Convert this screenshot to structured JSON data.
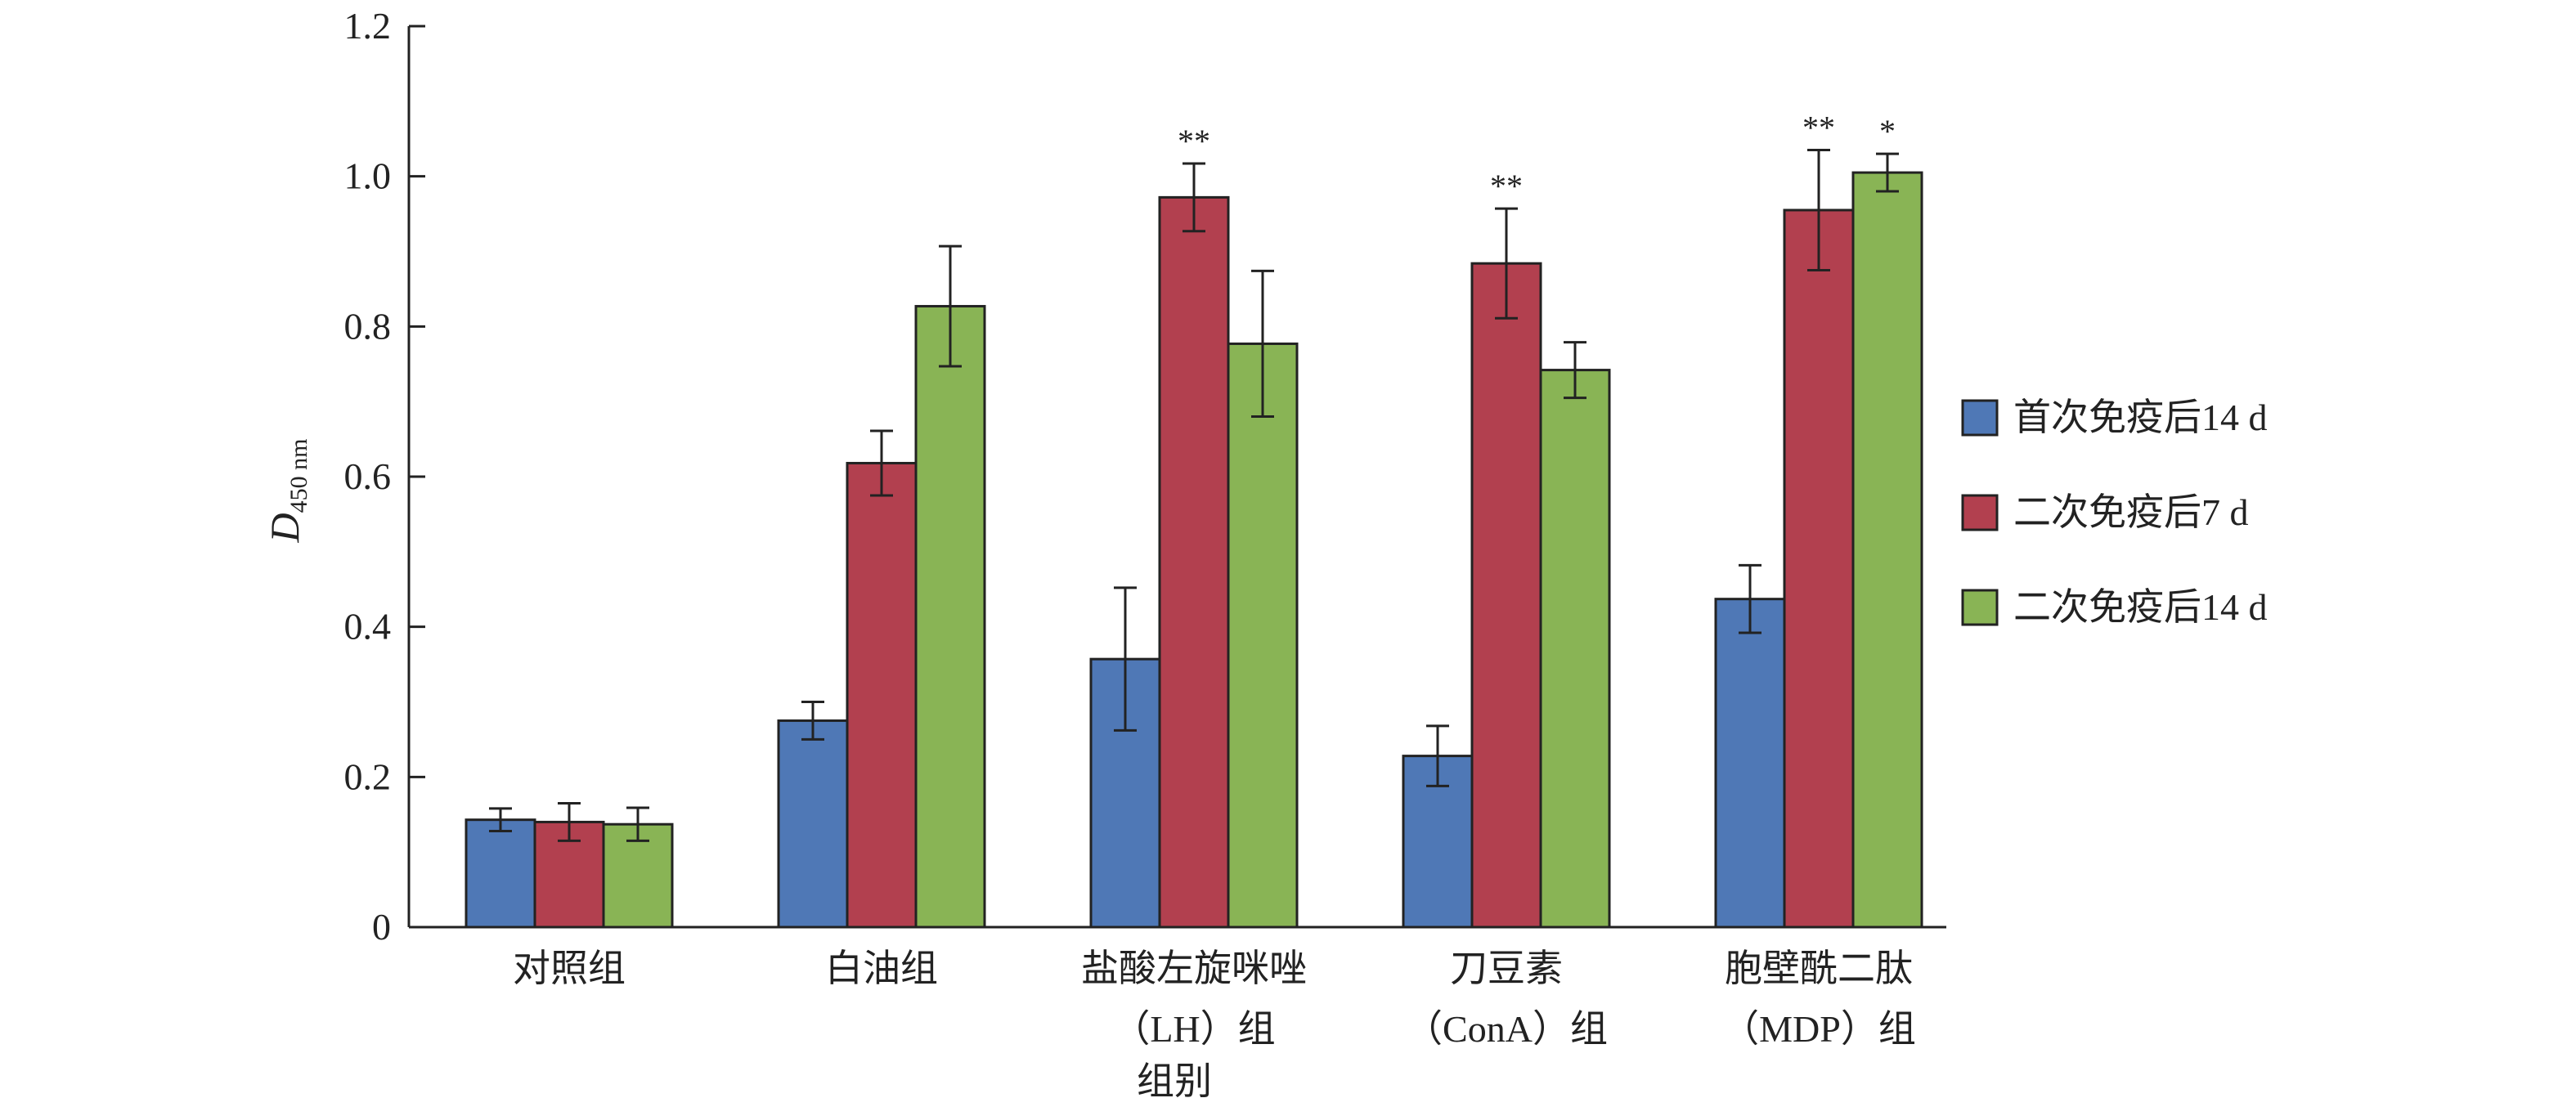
{
  "chart_data": {
    "type": "bar",
    "title": "",
    "xlabel": "组别",
    "ylabel": {
      "main": "D",
      "sub": "450 nm"
    },
    "ylim": [
      0,
      1.2
    ],
    "yticks": [
      0,
      0.2,
      0.4,
      0.6,
      0.8,
      1.0,
      1.2
    ],
    "ytick_labels": [
      "0",
      "0.2",
      "0.4",
      "0.6",
      "0.8",
      "1.0",
      "1.2"
    ],
    "categories": [
      [
        "对照组"
      ],
      [
        "白油组"
      ],
      [
        "盐酸左旋咪唑",
        "（LH）组"
      ],
      [
        "刀豆素",
        "（ConA）组"
      ],
      [
        "胞壁酰二肽",
        "（MDP）组"
      ]
    ],
    "legend_position": "right",
    "series": [
      {
        "name": "首次免疫后14 d",
        "color": "#4f78b6",
        "values": [
          0.143,
          0.275,
          0.357,
          0.228,
          0.437
        ],
        "errors": [
          0.015,
          0.025,
          0.095,
          0.04,
          0.045
        ],
        "annotations": [
          "",
          "",
          "",
          "",
          ""
        ]
      },
      {
        "name": "二次免疫后7 d",
        "color": "#b2404f",
        "values": [
          0.14,
          0.618,
          0.972,
          0.884,
          0.955
        ],
        "errors": [
          0.025,
          0.043,
          0.045,
          0.073,
          0.08
        ],
        "annotations": [
          "",
          "",
          "**",
          "**",
          "**"
        ]
      },
      {
        "name": "二次免疫后14 d",
        "color": "#89b455",
        "values": [
          0.137,
          0.827,
          0.777,
          0.742,
          1.005
        ],
        "errors": [
          0.022,
          0.08,
          0.097,
          0.037,
          0.025
        ],
        "annotations": [
          "",
          "",
          "",
          "",
          "*"
        ]
      }
    ]
  }
}
